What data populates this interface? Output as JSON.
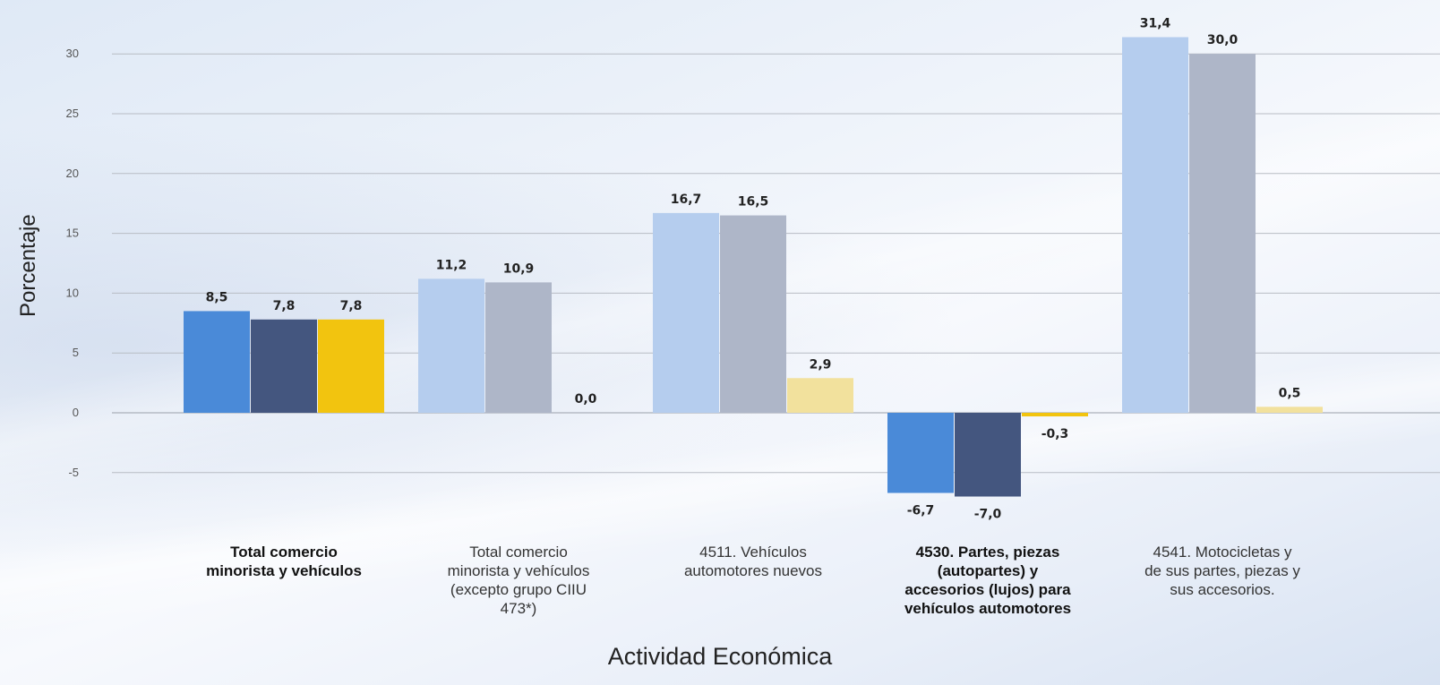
{
  "chart_data": {
    "type": "bar",
    "xlabel": "Actividad Económica",
    "ylabel": "Porcentaje",
    "ylim": [
      -7.5,
      32.5
    ],
    "yticks": [
      -5,
      0,
      5,
      10,
      15,
      20,
      25,
      30
    ],
    "grid": true,
    "categories": [
      {
        "label": "Total comercio\nminorista y vehículos",
        "bold": true
      },
      {
        "label": "Total comercio\nminorista y vehículos\n(excepto grupo CIIU\n473*)",
        "bold": false
      },
      {
        "label": "4511. Vehículos\nautomotores nuevos",
        "bold": false
      },
      {
        "label": "4530. Partes, piezas\n(autopartes) y\naccesorios (lujos) para\nvehículos automotores",
        "bold": true
      },
      {
        "label": "4541. Motocicletas y\nde sus partes, piezas y\nsus accesorios.",
        "bold": false
      }
    ],
    "series": [
      {
        "values": [
          8.5,
          11.2,
          16.7,
          -6.7,
          31.4
        ],
        "labels": [
          "8,5",
          "11,2",
          "16,7",
          "-6,7",
          "31,4"
        ]
      },
      {
        "values": [
          7.8,
          10.9,
          16.5,
          -7.0,
          30.0
        ],
        "labels": [
          "7,8",
          "10,9",
          "16,5",
          "-7,0",
          "30,0"
        ]
      },
      {
        "values": [
          7.8,
          0.0,
          2.9,
          -0.3,
          0.5
        ],
        "labels": [
          "7,8",
          "0,0",
          "2,9",
          "-0,3",
          "0,5"
        ]
      }
    ],
    "colors": {
      "highlight": [
        "#4a8ad8",
        "#44567f",
        "#f2c40f"
      ],
      "faded": [
        "#b5cdee",
        "#aeb6c8",
        "#f2e19d"
      ]
    },
    "highlighted_categories": [
      0,
      3
    ]
  }
}
